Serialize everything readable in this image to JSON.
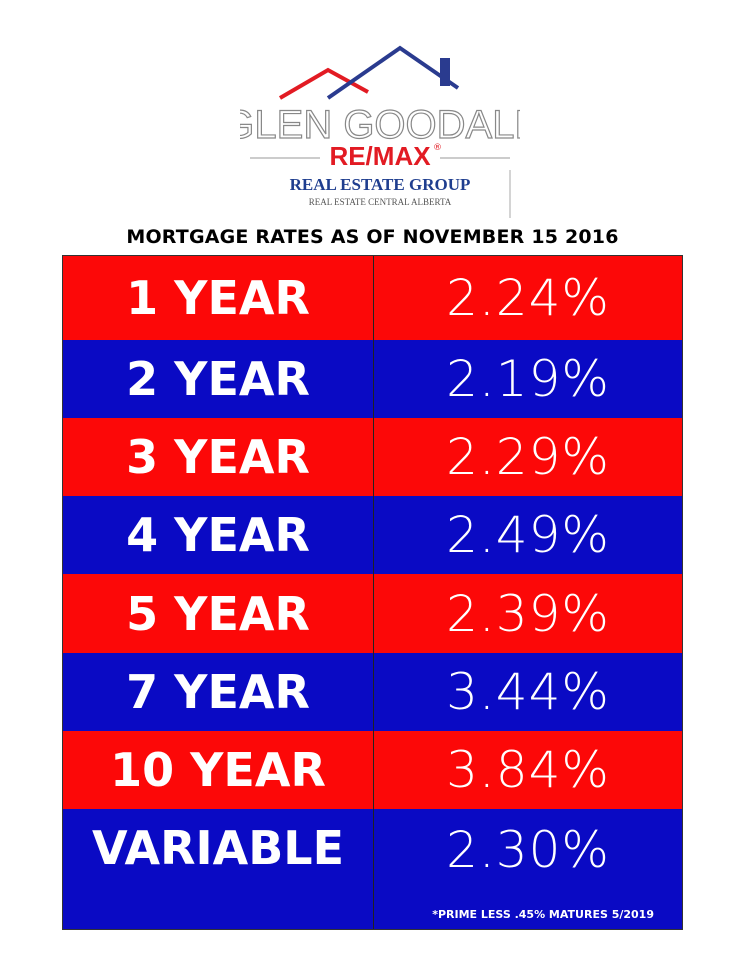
{
  "logo": {
    "name": "GLEN GOODALL",
    "brand": "RE/MAX",
    "brand_mark": "®",
    "group": "REAL ESTATE GROUP",
    "region": "REAL ESTATE CENTRAL ALBERTA"
  },
  "title": "MORTGAGE RATES AS OF NOVEMBER 15 2016",
  "table": {
    "rows": [
      [
        "1 YEAR",
        "2.24%"
      ],
      [
        "2 YEAR",
        "2.19%"
      ],
      [
        "3 YEAR",
        "2.29%"
      ],
      [
        "4 YEAR",
        "2.49%"
      ],
      [
        "5 YEAR",
        "2.39%"
      ],
      [
        "7 YEAR",
        "3.44%"
      ],
      [
        "10 YEAR",
        "3.84%"
      ],
      [
        "VARIABLE",
        "2.30%"
      ]
    ],
    "footnote": "*PRIME LESS .45% MATURES 5/2019"
  }
}
